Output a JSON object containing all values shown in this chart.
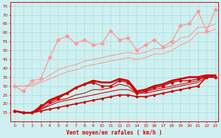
{
  "background_color": "#cff0f0",
  "grid_color": "#aadddd",
  "xlabel": "Vent moyen/en rafales ( km/h )",
  "xlabel_color": "#cc0000",
  "axis_color": "#cc0000",
  "tick_color": "#cc0000",
  "xlim": [
    -0.5,
    23.3
  ],
  "ylim": [
    10,
    77
  ],
  "yticks": [
    15,
    20,
    25,
    30,
    35,
    40,
    45,
    50,
    55,
    60,
    65,
    70,
    75
  ],
  "xticks": [
    0,
    1,
    2,
    3,
    4,
    5,
    6,
    7,
    8,
    9,
    10,
    11,
    12,
    13,
    14,
    15,
    16,
    17,
    18,
    19,
    20,
    21,
    22,
    23
  ],
  "lines": [
    {
      "x": [
        0,
        1,
        2,
        3,
        4,
        5,
        6,
        7,
        8,
        9,
        10,
        11,
        12,
        13,
        14,
        15,
        16,
        17,
        18,
        19,
        20,
        21,
        22,
        23
      ],
      "y": [
        16,
        15,
        15,
        16,
        17,
        18,
        19,
        20,
        21,
        22,
        23,
        24,
        25,
        25,
        24,
        24,
        25,
        26,
        27,
        28,
        29,
        30,
        35,
        35
      ],
      "color": "#cc0000",
      "lw": 1.2,
      "marker": "P",
      "markersize": 2.0,
      "zorder": 5
    },
    {
      "x": [
        0,
        1,
        2,
        3,
        4,
        5,
        6,
        7,
        8,
        9,
        10,
        11,
        12,
        13,
        14,
        15,
        16,
        17,
        18,
        19,
        20,
        21,
        22,
        23
      ],
      "y": [
        16,
        15,
        15,
        17,
        19,
        21,
        22,
        23,
        24,
        25,
        26,
        27,
        28,
        28,
        26,
        26,
        27,
        28,
        29,
        30,
        31,
        32,
        35,
        36
      ],
      "color": "#cc0000",
      "lw": 0.8,
      "marker": null,
      "markersize": 0,
      "zorder": 4
    },
    {
      "x": [
        0,
        1,
        2,
        3,
        4,
        5,
        6,
        7,
        8,
        9,
        10,
        11,
        12,
        13,
        14,
        15,
        16,
        17,
        18,
        19,
        20,
        21,
        22,
        23
      ],
      "y": [
        16,
        15,
        15,
        17,
        20,
        22,
        23,
        25,
        26,
        28,
        28,
        29,
        31,
        30,
        26,
        27,
        28,
        29,
        30,
        31,
        32,
        33,
        36,
        36
      ],
      "color": "#cc0000",
      "lw": 0.8,
      "marker": null,
      "markersize": 0,
      "zorder": 3
    },
    {
      "x": [
        0,
        1,
        2,
        3,
        4,
        5,
        6,
        7,
        8,
        9,
        10,
        11,
        12,
        13,
        14,
        15,
        16,
        17,
        18,
        19,
        20,
        21,
        22,
        23
      ],
      "y": [
        16,
        15,
        15,
        18,
        22,
        24,
        26,
        29,
        31,
        33,
        32,
        32,
        34,
        33,
        27,
        28,
        30,
        31,
        33,
        34,
        35,
        35,
        36,
        36
      ],
      "color": "#cc0000",
      "lw": 2.0,
      "marker": null,
      "markersize": 0,
      "zorder": 3
    },
    {
      "x": [
        0,
        1,
        2,
        3,
        4,
        5,
        6,
        7,
        8,
        9,
        10,
        11,
        12,
        13,
        14,
        15,
        16,
        17,
        18,
        19,
        20,
        21,
        22,
        23
      ],
      "y": [
        16,
        15,
        15,
        19,
        21,
        23,
        26,
        29,
        31,
        32,
        30,
        30,
        33,
        32,
        26,
        27,
        29,
        30,
        32,
        33,
        33,
        34,
        35,
        35
      ],
      "color": "#cc0000",
      "lw": 1.0,
      "marker": "D",
      "markersize": 2.0,
      "zorder": 5
    },
    {
      "x": [
        0,
        1,
        2,
        3,
        4,
        5,
        6,
        7,
        8,
        9,
        10,
        11,
        12,
        13,
        14,
        15,
        16,
        17,
        18,
        19,
        20,
        21,
        22,
        23
      ],
      "y": [
        30,
        27,
        33,
        34,
        46,
        56,
        58,
        54,
        56,
        53,
        54,
        61,
        56,
        57,
        50,
        53,
        56,
        52,
        55,
        64,
        65,
        72,
        61,
        73
      ],
      "color": "#ff9999",
      "lw": 1.0,
      "marker": "D",
      "markersize": 2.5,
      "zorder": 5
    },
    {
      "x": [
        0,
        1,
        2,
        3,
        4,
        5,
        6,
        7,
        8,
        9,
        10,
        11,
        12,
        13,
        14,
        15,
        16,
        17,
        18,
        19,
        20,
        21,
        22,
        23
      ],
      "y": [
        30,
        30,
        30,
        32,
        34,
        36,
        38,
        39,
        41,
        42,
        43,
        44,
        45,
        46,
        45,
        46,
        48,
        48,
        50,
        53,
        55,
        60,
        60,
        62
      ],
      "color": "#ff9999",
      "lw": 0.8,
      "marker": null,
      "markersize": 0,
      "zorder": 3
    },
    {
      "x": [
        0,
        1,
        2,
        3,
        4,
        5,
        6,
        7,
        8,
        9,
        10,
        11,
        12,
        13,
        14,
        15,
        16,
        17,
        18,
        19,
        20,
        21,
        22,
        23
      ],
      "y": [
        30,
        30,
        31,
        33,
        36,
        39,
        41,
        42,
        44,
        45,
        46,
        47,
        48,
        49,
        48,
        49,
        51,
        51,
        53,
        57,
        58,
        63,
        63,
        65
      ],
      "color": "#ff9999",
      "lw": 0.8,
      "marker": null,
      "markersize": 0,
      "zorder": 3
    }
  ]
}
